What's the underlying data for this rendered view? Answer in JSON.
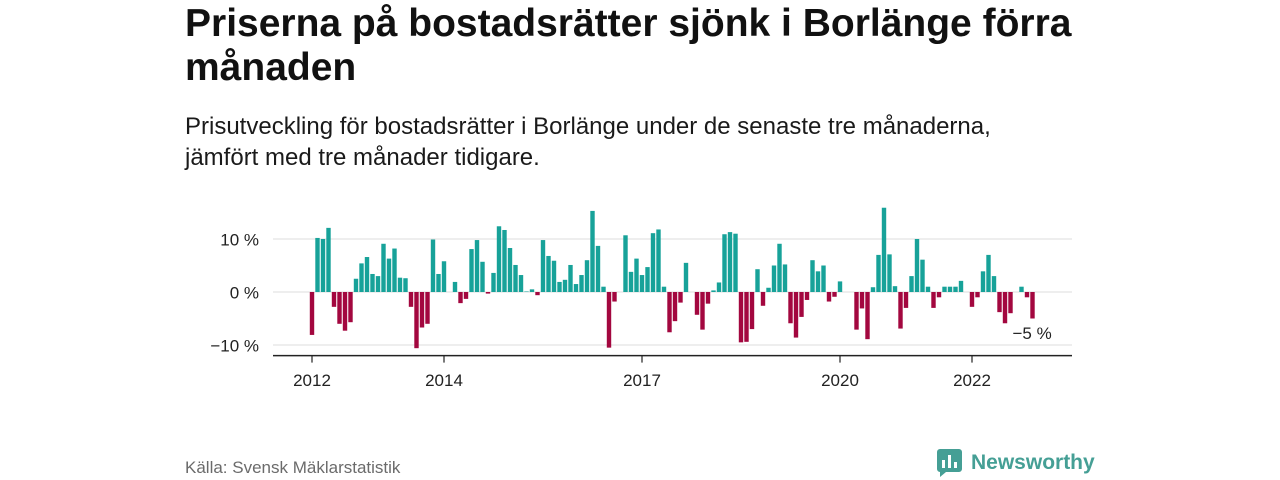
{
  "chart_data": {
    "type": "bar",
    "title": "Priserna på bostadsrätter sjönk i Borlänge förra månaden",
    "subtitle": "Prisutveckling för bostadsrätter i Borlänge under de senaste tre månaderna, jämfört med tre månader tidigare.",
    "xlabel": "",
    "ylabel": "",
    "ylim": [
      -12,
      16
    ],
    "grid": true,
    "y_ticks": [
      {
        "value": 10,
        "label": "10 %"
      },
      {
        "value": 0,
        "label": "0 %"
      },
      {
        "value": -10,
        "label": "−10 %"
      }
    ],
    "x_ticks": [
      {
        "x": "2012-01",
        "label": "2012"
      },
      {
        "x": "2014-01",
        "label": "2014"
      },
      {
        "x": "2017-01",
        "label": "2017"
      },
      {
        "x": "2020-01",
        "label": "2020"
      },
      {
        "x": "2022-01",
        "label": "2022"
      }
    ],
    "x": [
      "2012-01",
      "2012-02",
      "2012-03",
      "2012-04",
      "2012-05",
      "2012-06",
      "2012-07",
      "2012-08",
      "2012-09",
      "2012-10",
      "2012-11",
      "2012-12",
      "2013-01",
      "2013-02",
      "2013-03",
      "2013-04",
      "2013-05",
      "2013-06",
      "2013-07",
      "2013-08",
      "2013-09",
      "2013-10",
      "2013-11",
      "2013-12",
      "2014-01",
      "2014-02",
      "2014-03",
      "2014-04",
      "2014-05",
      "2014-06",
      "2014-07",
      "2014-08",
      "2014-09",
      "2014-10",
      "2014-11",
      "2014-12",
      "2015-01",
      "2015-02",
      "2015-03",
      "2015-04",
      "2015-05",
      "2015-06",
      "2015-07",
      "2015-08",
      "2015-09",
      "2015-10",
      "2015-11",
      "2015-12",
      "2016-01",
      "2016-02",
      "2016-03",
      "2016-04",
      "2016-05",
      "2016-06",
      "2016-07",
      "2016-08",
      "2016-09",
      "2016-10",
      "2016-11",
      "2016-12",
      "2017-01",
      "2017-02",
      "2017-03",
      "2017-04",
      "2017-05",
      "2017-06",
      "2017-07",
      "2017-08",
      "2017-09",
      "2017-10",
      "2017-11",
      "2017-12",
      "2018-01",
      "2018-02",
      "2018-03",
      "2018-04",
      "2018-05",
      "2018-06",
      "2018-07",
      "2018-08",
      "2018-09",
      "2018-10",
      "2018-11",
      "2018-12",
      "2019-01",
      "2019-02",
      "2019-03",
      "2019-04",
      "2019-05",
      "2019-06",
      "2019-07",
      "2019-08",
      "2019-09",
      "2019-10",
      "2019-11",
      "2019-12",
      "2020-01",
      "2020-02",
      "2020-03",
      "2020-04",
      "2020-05",
      "2020-06",
      "2020-07",
      "2020-08",
      "2020-09",
      "2020-10",
      "2020-11",
      "2020-12",
      "2021-01",
      "2021-02",
      "2021-03",
      "2021-04",
      "2021-05",
      "2021-06",
      "2021-07",
      "2021-08",
      "2021-09",
      "2021-10",
      "2021-11",
      "2021-12",
      "2022-01",
      "2022-02",
      "2022-03",
      "2022-04",
      "2022-05",
      "2022-06",
      "2022-07",
      "2022-08",
      "2022-09",
      "2022-10",
      "2022-11",
      "2022-12"
    ],
    "series": [
      {
        "values": [
          -8.1,
          10.2,
          10.0,
          12.1,
          -2.8,
          -6.0,
          -7.3,
          -5.7,
          2.5,
          5.4,
          6.6,
          3.4,
          3.0,
          9.1,
          6.3,
          8.2,
          2.7,
          2.6,
          -2.8,
          -10.6,
          -6.7,
          -6.0,
          9.9,
          3.4,
          5.8,
          0.0,
          1.9,
          -2.1,
          -1.3,
          8.1,
          9.8,
          5.7,
          -0.3,
          3.6,
          12.4,
          11.7,
          8.3,
          5.1,
          3.2,
          0.1,
          0.5,
          -0.6,
          9.8,
          6.8,
          5.9,
          1.9,
          2.3,
          5.1,
          1.5,
          3.2,
          6.0,
          15.3,
          8.7,
          1.0,
          -10.5,
          -1.8,
          0.0,
          10.7,
          3.8,
          6.3,
          3.2,
          4.7,
          11.1,
          11.8,
          1.0,
          -7.6,
          -5.5,
          -2.0,
          5.5,
          0.0,
          -4.3,
          -7.1,
          -2.2,
          0.3,
          1.8,
          10.9,
          11.3,
          11.0,
          -9.5,
          -9.4,
          -7.0,
          4.3,
          -2.6,
          0.8,
          5.0,
          9.1,
          5.2,
          -5.9,
          -8.6,
          -4.7,
          -1.5,
          6.0,
          3.9,
          5.0,
          -1.8,
          -0.9,
          2.0,
          0.0,
          0.0,
          -7.1,
          -3.1,
          -8.9,
          0.9,
          7.0,
          15.9,
          7.1,
          1.1,
          -6.9,
          -3.0,
          3.0,
          10.0,
          6.1,
          1.0,
          -3.0,
          -1.0,
          1.0,
          1.0,
          1.0,
          2.1,
          0.0,
          -2.8,
          -1.0,
          3.9,
          7.0,
          3.0,
          -3.8,
          -5.9,
          -4.0,
          0.0,
          1.0,
          -1.0,
          -5.0
        ]
      }
    ],
    "colors": {
      "positive": "#17a299",
      "negative": "#a3073f",
      "grid": "#dcdcdc",
      "axis": "#222222"
    },
    "annotation": {
      "text": "−5 %",
      "x": "2022-12",
      "y": -5
    }
  },
  "source": "Källa: Svensk Mäklarstatistik",
  "logo": {
    "text": "Newsworthy",
    "icon": "newsworthy-logo-icon",
    "color": "#459f95"
  }
}
